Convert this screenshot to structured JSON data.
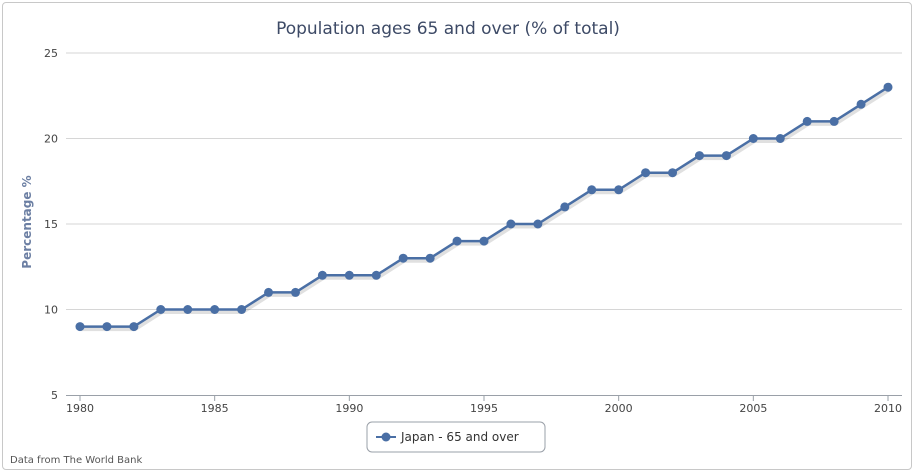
{
  "chart_data": {
    "type": "line",
    "title": "Population ages 65 and over (% of total)",
    "xlabel": "",
    "ylabel": "Percentage %",
    "ylim": [
      5,
      25
    ],
    "yticks": [
      5,
      10,
      15,
      20,
      25
    ],
    "xlim": [
      1980,
      2010
    ],
    "xticks": [
      1980,
      1985,
      1990,
      1995,
      2000,
      2005,
      2010
    ],
    "x": [
      1980,
      1981,
      1982,
      1983,
      1984,
      1985,
      1986,
      1987,
      1988,
      1989,
      1990,
      1991,
      1992,
      1993,
      1994,
      1995,
      1996,
      1997,
      1998,
      1999,
      2000,
      2001,
      2002,
      2003,
      2004,
      2005,
      2006,
      2007,
      2008,
      2009,
      2010
    ],
    "series": [
      {
        "name": "Japan - 65 and over",
        "color": "#4a6fa5",
        "values": [
          9,
          9,
          9,
          10,
          10,
          10,
          10,
          11,
          11,
          12,
          12,
          12,
          13,
          13,
          14,
          14,
          15,
          15,
          16,
          17,
          17,
          18,
          18,
          19,
          19,
          20,
          20,
          21,
          21,
          22,
          23
        ]
      }
    ],
    "grid": true,
    "legend": "bottom-center",
    "credit": "Data from The World Bank"
  }
}
